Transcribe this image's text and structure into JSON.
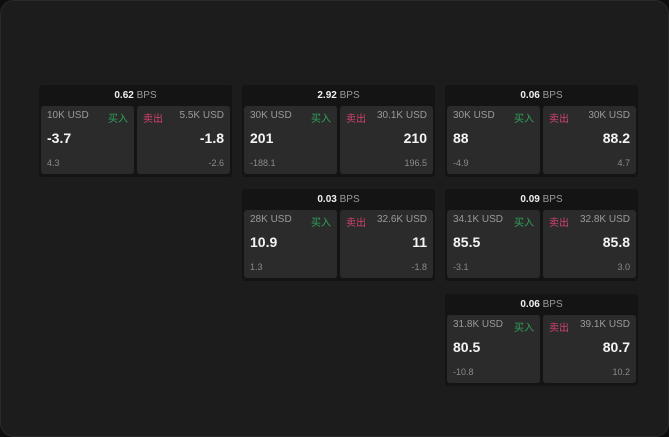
{
  "unit": "BPS",
  "buy_label": "买入",
  "sell_label": "卖出",
  "colors": {
    "buy": "#2fa35a",
    "sell": "#d0416b"
  },
  "cards": [
    {
      "spread": "0.62",
      "buy": {
        "size": "10K USD",
        "price": "-3.7",
        "change": "4.3"
      },
      "sell": {
        "size": "5.5K USD",
        "price": "-1.8",
        "change": "-2.6"
      }
    },
    {
      "spread": "2.92",
      "buy": {
        "size": "30K USD",
        "price": "201",
        "change": "-188.1"
      },
      "sell": {
        "size": "30.1K USD",
        "price": "210",
        "change": "196.5"
      }
    },
    {
      "spread": "0.06",
      "buy": {
        "size": "30K USD",
        "price": "88",
        "change": "-4.9"
      },
      "sell": {
        "size": "30K USD",
        "price": "88.2",
        "change": "4.7"
      }
    },
    {
      "spread": "0.03",
      "buy": {
        "size": "28K USD",
        "price": "10.9",
        "change": "1.3"
      },
      "sell": {
        "size": "32.6K USD",
        "price": "11",
        "change": "-1.8"
      }
    },
    {
      "spread": "0.09",
      "buy": {
        "size": "34.1K USD",
        "price": "85.5",
        "change": "-3.1"
      },
      "sell": {
        "size": "32.8K USD",
        "price": "85.8",
        "change": "3.0"
      }
    },
    {
      "spread": "0.06",
      "buy": {
        "size": "31.8K USD",
        "price": "80.5",
        "change": "-10.8"
      },
      "sell": {
        "size": "39.1K USD",
        "price": "80.7",
        "change": "10.2"
      }
    }
  ]
}
